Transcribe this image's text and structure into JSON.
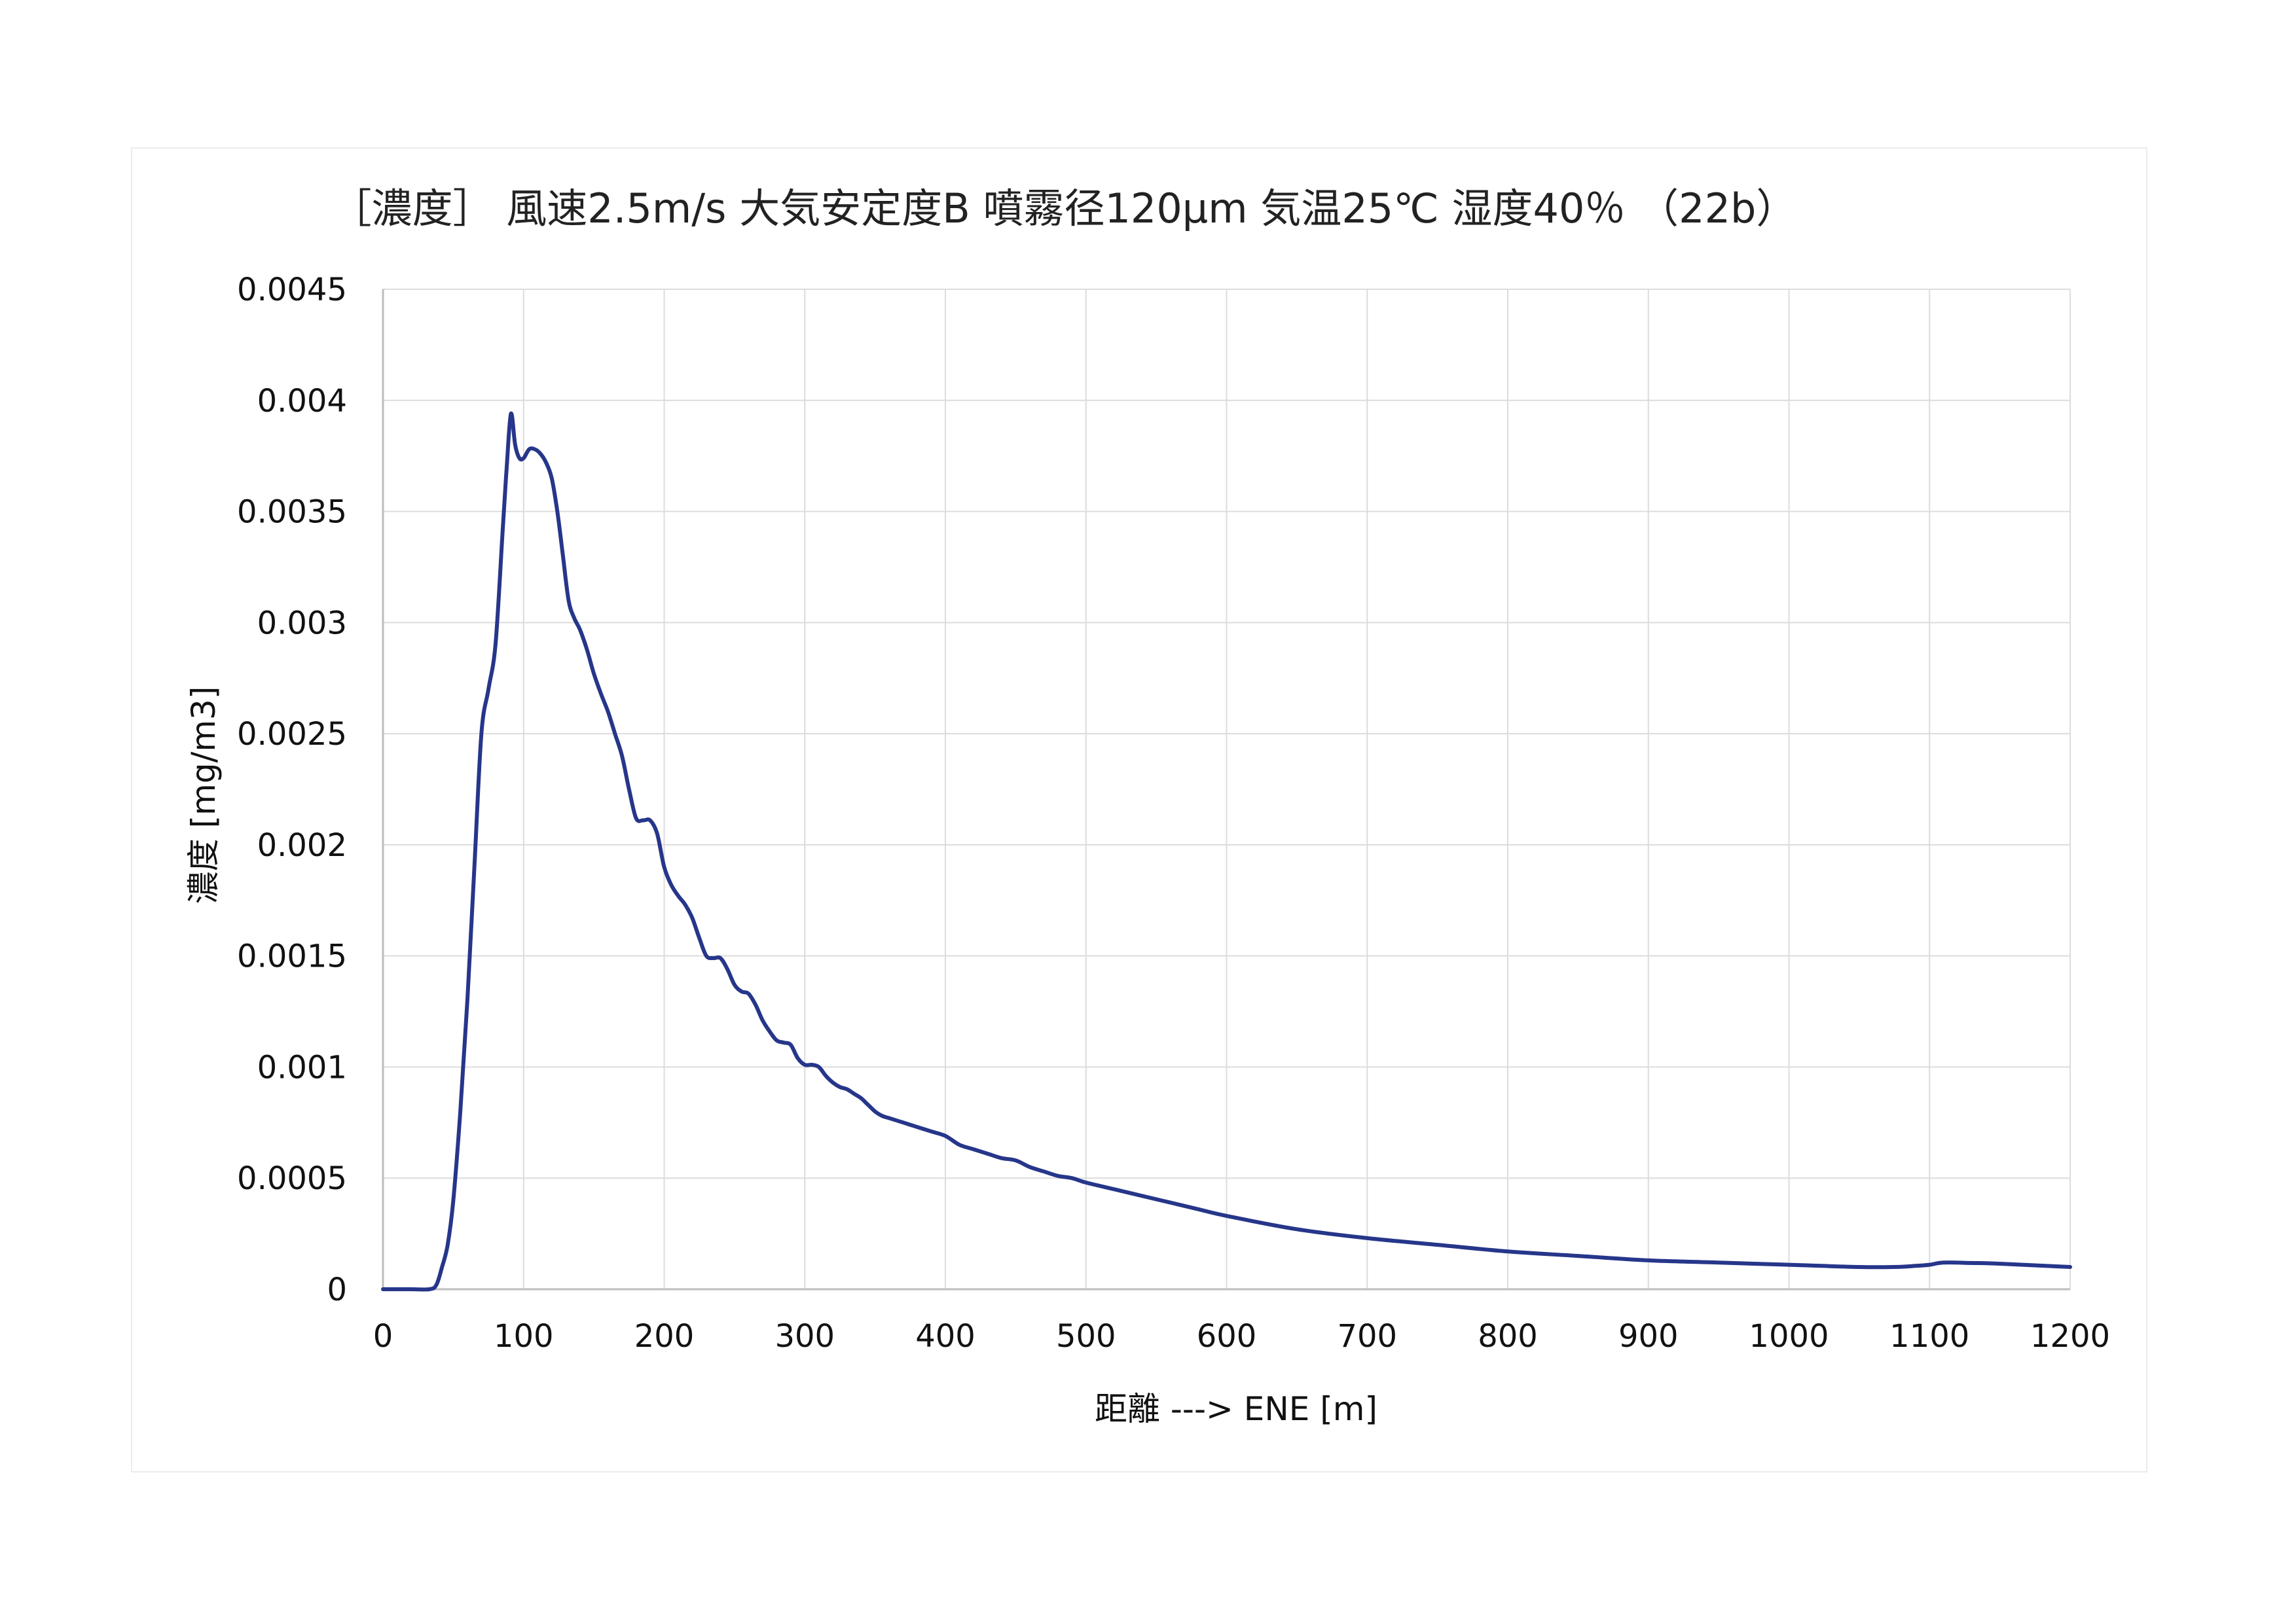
{
  "chart_data": {
    "type": "line",
    "title": "［濃度］ 風速2.5m/s 大気安定度B 噴霧径120μm 気温25℃ 湿度40％ （22b）",
    "xlabel": "距離 ---> ENE [m]",
    "ylabel": "濃度 [mg/m3]",
    "xlim": [
      0,
      1200
    ],
    "ylim": [
      0,
      0.0045
    ],
    "x_ticks": [
      "0",
      "100",
      "200",
      "300",
      "400",
      "500",
      "600",
      "700",
      "800",
      "900",
      "1000",
      "1100",
      "1200"
    ],
    "y_ticks": [
      "0",
      "0.0005",
      "0.001",
      "0.0015",
      "0.002",
      "0.0025",
      "0.003",
      "0.0035",
      "0.004",
      "0.0045"
    ],
    "grid": true,
    "series": [
      {
        "color": "#26368a",
        "x": [
          0,
          20,
          33,
          38,
          42,
          46,
          50,
          55,
          60,
          65,
          70,
          75,
          80,
          85,
          88,
          91,
          94,
          97,
          100,
          104,
          108,
          112,
          116,
          120,
          124,
          128,
          132,
          136,
          140,
          145,
          150,
          155,
          160,
          165,
          170,
          175,
          180,
          185,
          190,
          195,
          200,
          205,
          210,
          215,
          220,
          225,
          230,
          235,
          240,
          245,
          250,
          255,
          260,
          265,
          270,
          275,
          280,
          285,
          290,
          295,
          300,
          305,
          310,
          315,
          320,
          325,
          330,
          335,
          340,
          345,
          350,
          355,
          360,
          370,
          380,
          390,
          400,
          410,
          420,
          430,
          440,
          450,
          460,
          470,
          480,
          490,
          500,
          520,
          540,
          560,
          580,
          600,
          650,
          700,
          750,
          800,
          850,
          900,
          950,
          1000,
          1050,
          1075,
          1090,
          1100,
          1110,
          1130,
          1150,
          1200
        ],
        "y": [
          0,
          0,
          0,
          2e-05,
          0.0001,
          0.0002,
          0.0004,
          0.0008,
          0.0013,
          0.0019,
          0.0025,
          0.0027,
          0.0029,
          0.0034,
          0.0037,
          0.00394,
          0.0038,
          0.00374,
          0.00374,
          0.00378,
          0.00378,
          0.00376,
          0.00372,
          0.00365,
          0.0035,
          0.0033,
          0.0031,
          0.00302,
          0.00297,
          0.00288,
          0.00277,
          0.00268,
          0.0026,
          0.0025,
          0.0024,
          0.00225,
          0.00212,
          0.00211,
          0.00211,
          0.00205,
          0.0019,
          0.00182,
          0.00177,
          0.00173,
          0.00167,
          0.00158,
          0.0015,
          0.00149,
          0.00149,
          0.00144,
          0.00137,
          0.00134,
          0.00133,
          0.00128,
          0.00121,
          0.00116,
          0.00112,
          0.00111,
          0.0011,
          0.00104,
          0.00101,
          0.00101,
          0.001,
          0.00096,
          0.00093,
          0.00091,
          0.0009,
          0.00088,
          0.00086,
          0.00083,
          0.0008,
          0.00078,
          0.00077,
          0.00075,
          0.00073,
          0.00071,
          0.00069,
          0.00065,
          0.00063,
          0.00061,
          0.00059,
          0.00058,
          0.00055,
          0.00053,
          0.00051,
          0.0005,
          0.00048,
          0.00045,
          0.00042,
          0.00039,
          0.00036,
          0.00033,
          0.00027,
          0.00023,
          0.0002,
          0.00017,
          0.00015,
          0.00013,
          0.00012,
          0.00011,
          0.0001,
          0.0001,
          0.000105,
          0.00011,
          0.00012,
          0.000118,
          0.000115,
          0.0001
        ]
      }
    ]
  }
}
